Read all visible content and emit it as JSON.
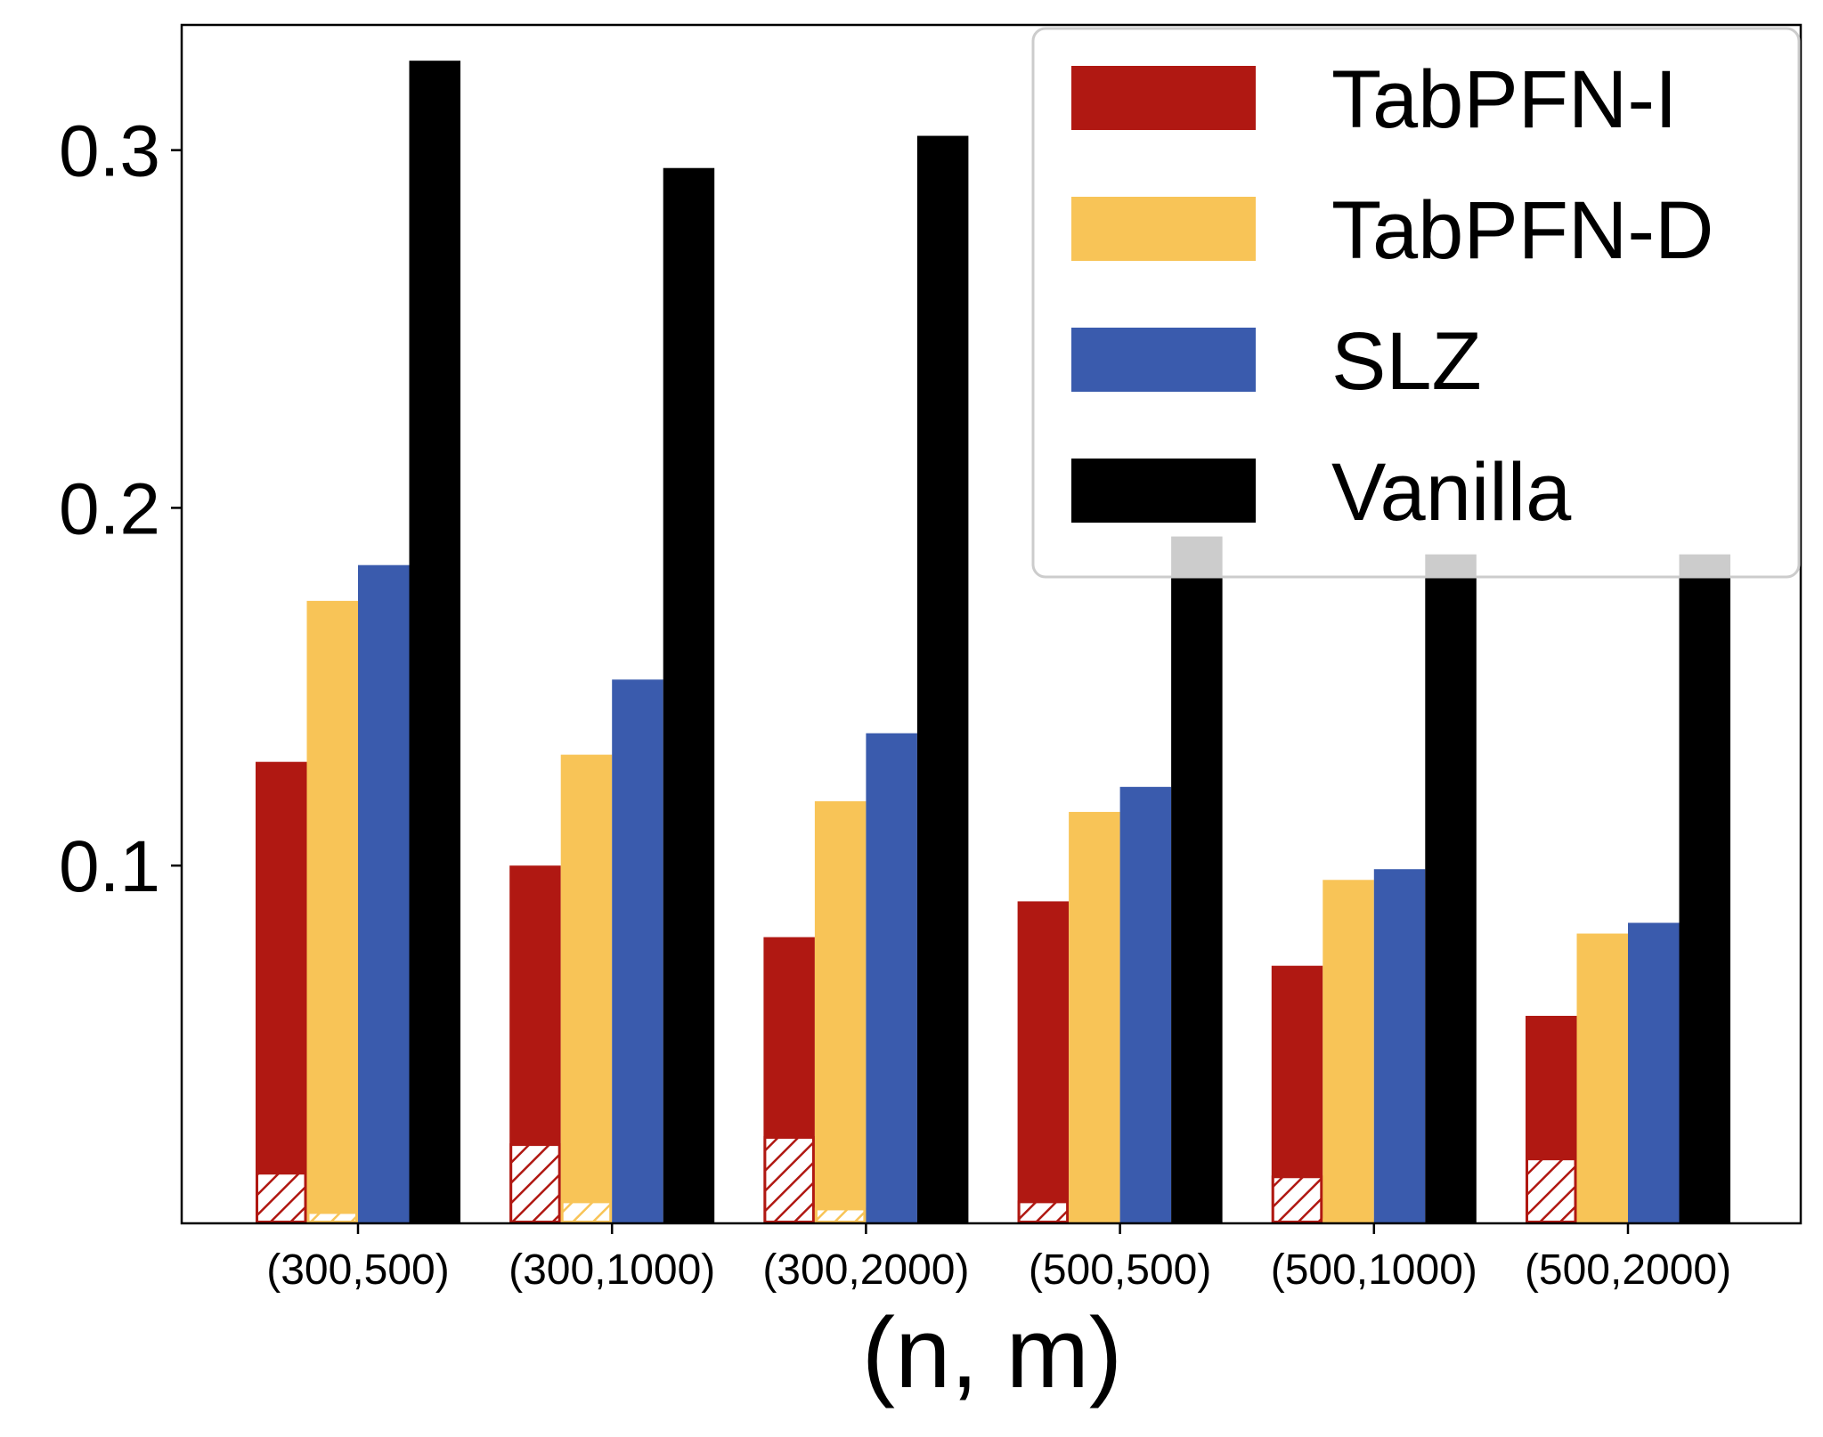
{
  "chart_data": {
    "type": "bar",
    "title": "",
    "xlabel": "(n, m)",
    "ylabel": "",
    "ylim": [
      0,
      0.335
    ],
    "yticks": [
      0.1,
      0.2,
      0.3
    ],
    "ytick_labels": [
      "0.1",
      "0.2",
      "0.3"
    ],
    "categories": [
      "(300,500)",
      "(300,1000)",
      "(300,2000)",
      "(500,500)",
      "(500,1000)",
      "(500,2000)"
    ],
    "series": [
      {
        "name": "TabPFN-I",
        "color": "#b01812",
        "values": [
          0.129,
          0.1,
          0.08,
          0.09,
          0.072,
          0.058
        ]
      },
      {
        "name": "TabPFN-D",
        "color": "#f8c457",
        "values": [
          0.174,
          0.131,
          0.118,
          0.115,
          0.096,
          0.081
        ]
      },
      {
        "name": "SLZ",
        "color": "#3a5bad",
        "values": [
          0.184,
          0.152,
          0.137,
          0.122,
          0.099,
          0.084
        ]
      },
      {
        "name": "Vanilla",
        "color": "#000000",
        "values": [
          0.325,
          0.295,
          0.304,
          0.192,
          0.187,
          0.187
        ]
      }
    ],
    "hatched_overlay": {
      "TabPFN-I": [
        0.014,
        0.022,
        0.024,
        0.006,
        0.013,
        0.018
      ],
      "TabPFN-D": [
        0.003,
        0.006,
        0.004,
        0.001,
        0.001,
        0.001
      ]
    },
    "legend": {
      "position": "top-right",
      "entries": [
        "TabPFN-I",
        "TabPFN-D",
        "SLZ",
        "Vanilla"
      ]
    },
    "grid": false
  }
}
